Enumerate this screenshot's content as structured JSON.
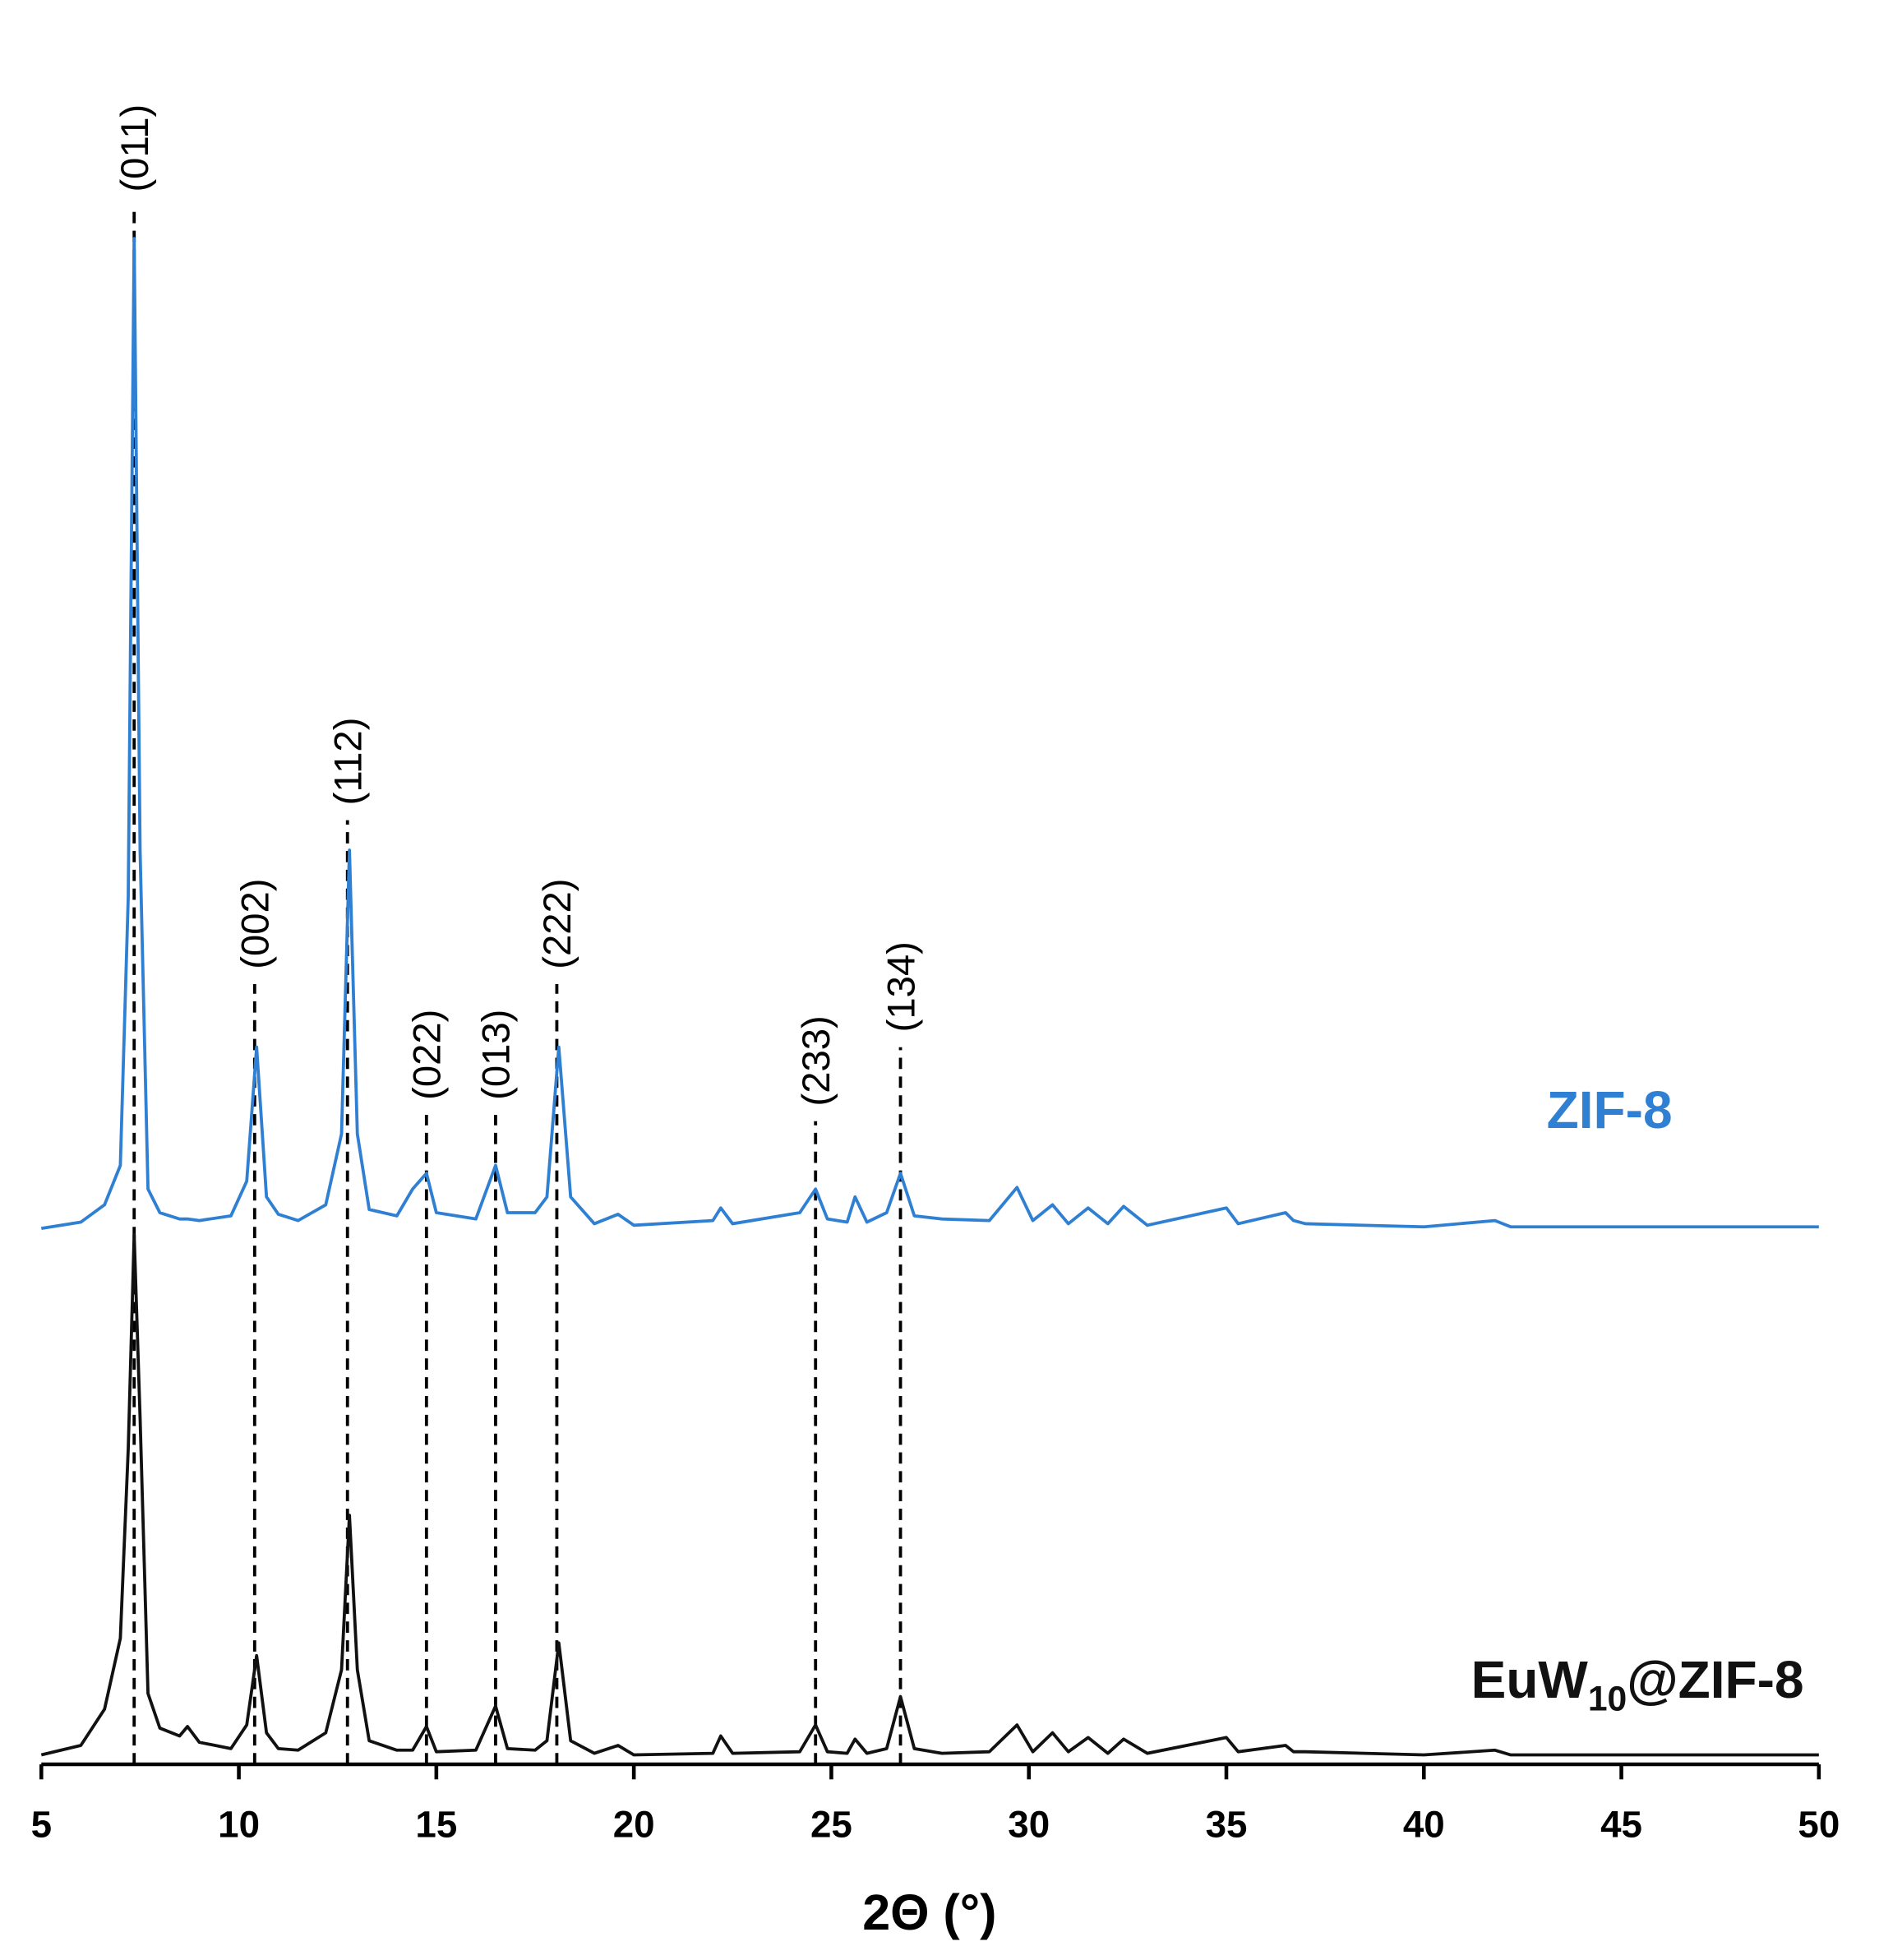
{
  "chart_data": {
    "type": "line",
    "xlabel": "2Θ (°)",
    "xlim": [
      5,
      50
    ],
    "xticks": [
      5,
      10,
      15,
      20,
      25,
      30,
      35,
      40,
      45,
      50
    ],
    "ylim": [
      0,
      100
    ],
    "x": [
      5,
      6,
      6.6,
      7.0,
      7.2,
      7.35,
      7.5,
      7.7,
      8.0,
      8.5,
      8.7,
      9.0,
      9.8,
      10.2,
      10.45,
      10.7,
      11.0,
      11.5,
      12.2,
      12.6,
      12.8,
      13.0,
      13.3,
      14.0,
      14.4,
      14.75,
      15.0,
      16.0,
      16.5,
      16.8,
      17.5,
      17.8,
      18.1,
      18.4,
      19.0,
      19.6,
      20.0,
      22.0,
      22.2,
      22.5,
      24.2,
      24.6,
      24.9,
      25.4,
      25.6,
      25.9,
      26.4,
      26.75,
      27.1,
      27.8,
      29.0,
      29.7,
      30.1,
      30.6,
      31.0,
      31.5,
      32.0,
      32.4,
      33.0,
      35.0,
      35.3,
      36.5,
      36.7,
      37.0,
      40.0,
      41.8,
      42.2,
      45.0,
      50
    ],
    "series": [
      {
        "name": "ZIF-8",
        "color": "#2f7fd3",
        "values": [
          34.0,
          34.4,
          35.5,
          38,
          55,
          96.8,
          58,
          36.5,
          35,
          34.6,
          34.6,
          34.5,
          34.8,
          37,
          45.5,
          36,
          34.9,
          34.5,
          35.5,
          40,
          58,
          40,
          35.2,
          34.8,
          36.5,
          37.5,
          35,
          34.6,
          38,
          35,
          35,
          36,
          45.5,
          36,
          34.3,
          34.9,
          34.2,
          34.5,
          35.3,
          34.3,
          35,
          36.5,
          34.6,
          34.4,
          36,
          34.4,
          35,
          37.5,
          34.8,
          34.6,
          34.5,
          36.6,
          34.5,
          35.5,
          34.3,
          35.3,
          34.3,
          35.4,
          34.2,
          35.3,
          34.3,
          35,
          34.5,
          34.3,
          34.1,
          34.5,
          34.1,
          34.1,
          34.1
        ]
      },
      {
        "name": "EuW10@ZIF-8",
        "color": "#111111",
        "values": [
          0.6,
          1.2,
          3.5,
          8,
          20,
          33.6,
          22,
          4.5,
          2.3,
          1.8,
          2.4,
          1.4,
          1.0,
          2.5,
          6.9,
          2.0,
          1.0,
          0.9,
          2,
          6,
          15.8,
          6,
          1.5,
          0.9,
          0.9,
          2.4,
          0.8,
          0.9,
          3.7,
          1.0,
          0.9,
          1.5,
          7.7,
          1.5,
          0.7,
          1.2,
          0.6,
          0.7,
          1.8,
          0.7,
          0.8,
          2.5,
          0.8,
          0.7,
          1.6,
          0.7,
          1.0,
          4.3,
          1.0,
          0.7,
          0.8,
          2.5,
          0.8,
          2.0,
          0.8,
          1.7,
          0.7,
          1.6,
          0.7,
          1.7,
          0.8,
          1.2,
          0.8,
          0.8,
          0.6,
          0.9,
          0.6,
          0.6,
          0.6
        ]
      }
    ],
    "annotations": [
      {
        "x": 7.35,
        "y": 98.8,
        "label": "(011)"
      },
      {
        "x": 10.4,
        "y": 49.5,
        "label": "(002)"
      },
      {
        "x": 12.75,
        "y": 59.9,
        "label": "(112)"
      },
      {
        "x": 14.75,
        "y": 41.2,
        "label": "(022)"
      },
      {
        "x": 16.5,
        "y": 41.2,
        "label": "(013)"
      },
      {
        "x": 18.05,
        "y": 49.5,
        "label": "(222)"
      },
      {
        "x": 24.6,
        "y": 40.8,
        "label": "(233)"
      },
      {
        "x": 26.75,
        "y": 45.5,
        "label": "(134)"
      }
    ]
  }
}
